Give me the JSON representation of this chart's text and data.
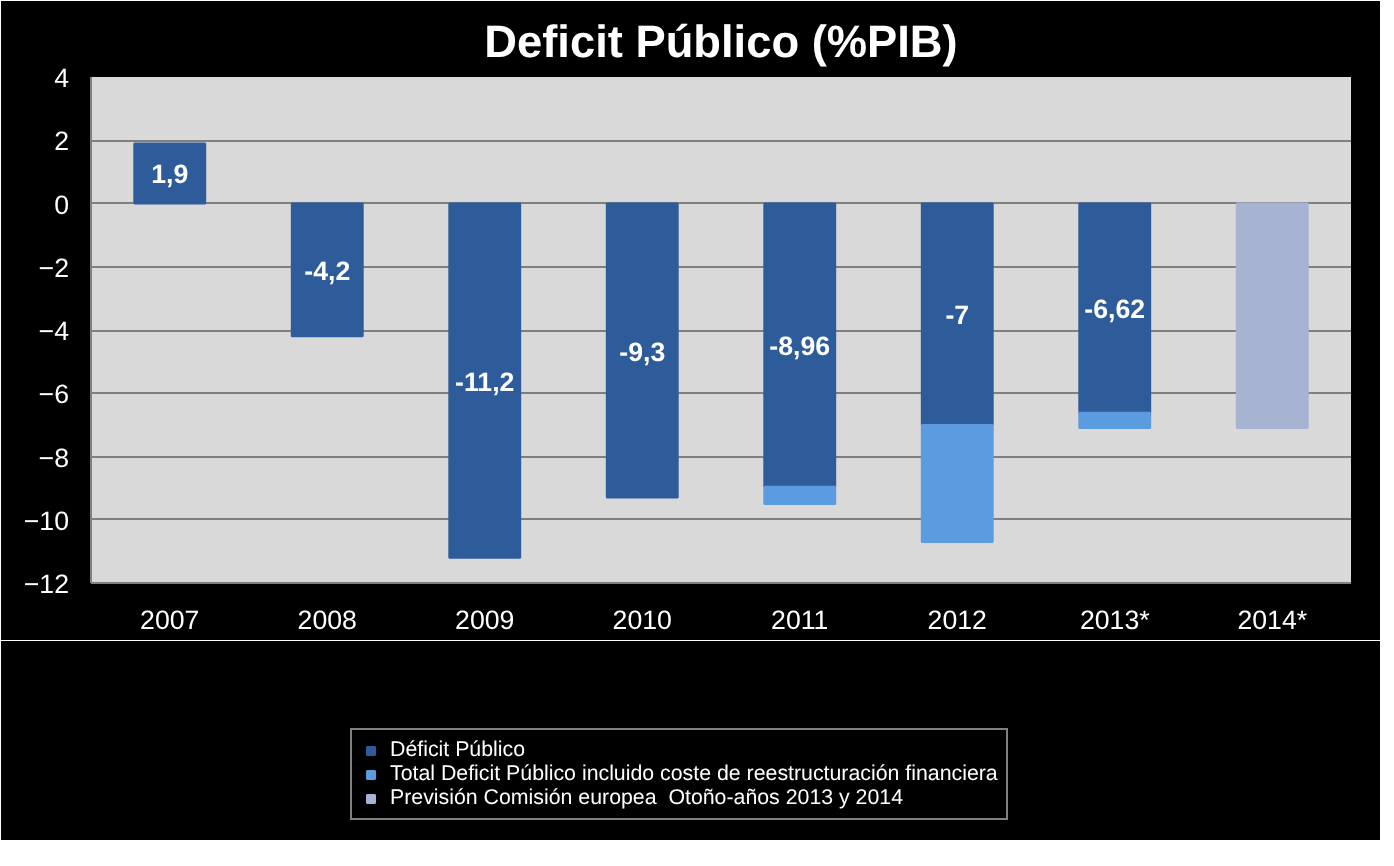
{
  "chart_data": {
    "type": "bar",
    "stacked": true,
    "title": "Deficit Público (%PIB)",
    "categories": [
      "2007",
      "2008",
      "2009",
      "2010",
      "2011",
      "2012",
      "2013*",
      "2014*"
    ],
    "series": [
      {
        "name": "Déficit Público",
        "color": "#2e5c9a",
        "values": [
          1.9,
          -4.2,
          -11.2,
          -9.3,
          -8.96,
          -7,
          -6.62,
          null
        ],
        "value_labels": [
          "1,9",
          "-4,2",
          "-11,2",
          "-9,3",
          "-8,96",
          "-7",
          "-6,62",
          null
        ]
      },
      {
        "name": "Total Deficit Público incluido coste de reestructuración financiera",
        "color": "#5b9be0",
        "values": [
          null,
          null,
          null,
          null,
          -0.54,
          -3.7,
          -0.48,
          null
        ]
      },
      {
        "name": "Previsión Comisión europea  Otoño-años 2013 y 2014",
        "color": "#a6b4d2",
        "values": [
          null,
          null,
          null,
          null,
          null,
          null,
          null,
          -7.1
        ]
      }
    ],
    "ylim": [
      -12,
      4
    ],
    "yticks": [
      -12,
      -10,
      -8,
      -6,
      -4,
      -2,
      0,
      2,
      4
    ],
    "grid": "y",
    "legend": "bottom"
  }
}
